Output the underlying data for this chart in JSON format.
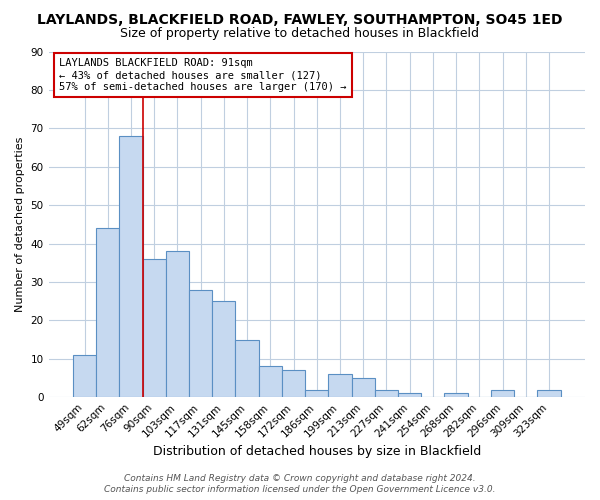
{
  "title": "LAYLANDS, BLACKFIELD ROAD, FAWLEY, SOUTHAMPTON, SO45 1ED",
  "subtitle": "Size of property relative to detached houses in Blackfield",
  "xlabel": "Distribution of detached houses by size in Blackfield",
  "ylabel": "Number of detached properties",
  "categories": [
    "49sqm",
    "62sqm",
    "76sqm",
    "90sqm",
    "103sqm",
    "117sqm",
    "131sqm",
    "145sqm",
    "158sqm",
    "172sqm",
    "186sqm",
    "199sqm",
    "213sqm",
    "227sqm",
    "241sqm",
    "254sqm",
    "268sqm",
    "282sqm",
    "296sqm",
    "309sqm",
    "323sqm"
  ],
  "values": [
    11,
    44,
    68,
    36,
    38,
    28,
    25,
    15,
    8,
    7,
    2,
    6,
    5,
    2,
    1,
    0,
    1,
    0,
    2,
    0,
    2
  ],
  "bar_color": "#c6d9f0",
  "bar_edge_color": "#5a8fc3",
  "ylim": [
    0,
    90
  ],
  "yticks": [
    0,
    10,
    20,
    30,
    40,
    50,
    60,
    70,
    80,
    90
  ],
  "annotation_title": "LAYLANDS BLACKFIELD ROAD: 91sqm",
  "annotation_line1": "← 43% of detached houses are smaller (127)",
  "annotation_line2": "57% of semi-detached houses are larger (170) →",
  "footer1": "Contains HM Land Registry data © Crown copyright and database right 2024.",
  "footer2": "Contains public sector information licensed under the Open Government Licence v3.0.",
  "background_color": "#ffffff",
  "grid_color": "#c0cfe0",
  "title_fontsize": 10,
  "subtitle_fontsize": 9,
  "xlabel_fontsize": 9,
  "ylabel_fontsize": 8,
  "tick_fontsize": 7.5,
  "footer_fontsize": 6.5,
  "vline_bar_index": 2.5
}
